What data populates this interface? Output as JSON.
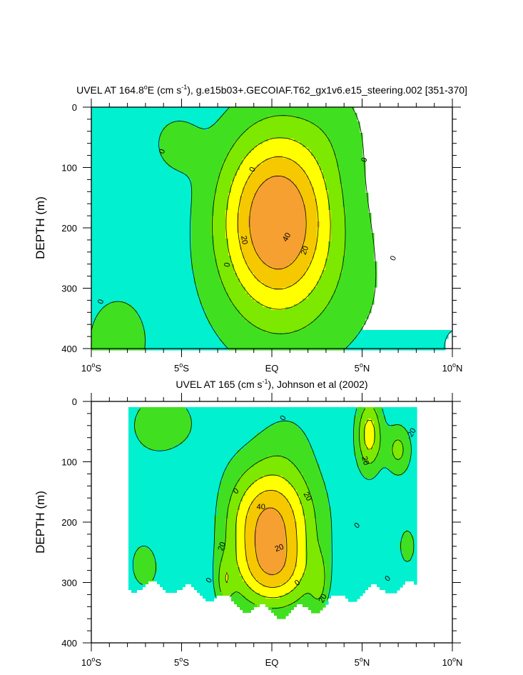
{
  "colors": {
    "lt0": "#00ffff",
    "c_0_neg": "#00f0d0",
    "c_0_10": "#40e020",
    "c_10_20": "#7de800",
    "c_20_30": "#ffff00",
    "c_30_40": "#f5c800",
    "c_40_50": "#f5a030",
    "missing": "#ffffff"
  },
  "chart_data": [
    {
      "type": "contour",
      "title": "UVEL AT 164.8°E (cm s⁻¹), g.e15b03+.GECOIAF.T62_gx1v6.e15_steering.002 [351-370]",
      "title_parts": {
        "a": "UVEL AT 164.8",
        "deg": "o",
        "b": "E (cm s",
        "sup": "-1",
        "c": "), g.e15b03+.GECOIAF.T62_gx1v6.e15_steering.002 [351-370]"
      },
      "xlabel": "",
      "ylabel": "DEPTH (m)",
      "x_range": [
        -10,
        10
      ],
      "y_range": [
        0,
        400
      ],
      "y_inverted": true,
      "x_ticks": [
        {
          "value": -10,
          "label": "10",
          "deg": "o",
          "suffix": "S"
        },
        {
          "value": -5,
          "label": "5",
          "deg": "o",
          "suffix": "S"
        },
        {
          "value": 0,
          "label": "EQ",
          "deg": "",
          "suffix": ""
        },
        {
          "value": 5,
          "label": "5",
          "deg": "o",
          "suffix": "N"
        },
        {
          "value": 10,
          "label": "10",
          "deg": "o",
          "suffix": "N"
        }
      ],
      "y_ticks": [
        0,
        100,
        200,
        300,
        400
      ],
      "contour_interval": 10,
      "max_level": 40,
      "contour_labels": [
        {
          "text": "0",
          "lat": -6.1,
          "depth": 73,
          "rot": -70
        },
        {
          "text": "0",
          "lat": -9.5,
          "depth": 322,
          "rot": -70
        },
        {
          "text": "0",
          "lat": -1.1,
          "depth": 103,
          "rot": -60
        },
        {
          "text": "0",
          "lat": -2.5,
          "depth": 261,
          "rot": -80
        },
        {
          "text": "0",
          "lat": 5.1,
          "depth": 87,
          "rot": -70
        },
        {
          "text": "0",
          "lat": 6.7,
          "depth": 250,
          "rot": -65
        },
        {
          "text": "20",
          "lat": -1.5,
          "depth": 220,
          "rot": 80
        },
        {
          "text": "40",
          "lat": 0.8,
          "depth": 215,
          "rot": -60
        },
        {
          "text": "20",
          "lat": 1.8,
          "depth": 237,
          "rot": -70
        }
      ]
    },
    {
      "type": "contour",
      "title": "UVEL AT 165 (cm s⁻¹), Johnson et al (2002)",
      "title_parts": {
        "a": "UVEL AT 165 (cm s",
        "sup": "-1",
        "c": "), Johnson et al (2002)"
      },
      "xlabel": "",
      "ylabel": "DEPTH (m)",
      "x_range": [
        -10,
        10
      ],
      "y_range": [
        0,
        400
      ],
      "y_inverted": true,
      "data_extent": {
        "lat": [
          -8,
          8
        ],
        "depth": [
          10,
          360
        ]
      },
      "x_ticks": [
        {
          "value": -10,
          "label": "10",
          "deg": "o",
          "suffix": "S"
        },
        {
          "value": -5,
          "label": "5",
          "deg": "o",
          "suffix": "S"
        },
        {
          "value": 0,
          "label": "EQ",
          "deg": "",
          "suffix": ""
        },
        {
          "value": 5,
          "label": "5",
          "deg": "o",
          "suffix": "N"
        },
        {
          "value": 10,
          "label": "10",
          "deg": "o",
          "suffix": "N"
        }
      ],
      "y_ticks": [
        0,
        100,
        200,
        300,
        400
      ],
      "contour_interval": 10,
      "max_level": 40,
      "contour_labels": [
        {
          "text": "0",
          "lat": 0.6,
          "depth": 27,
          "rot": -60
        },
        {
          "text": "-20",
          "lat": 7.7,
          "depth": 53,
          "rot": -60
        },
        {
          "text": "20",
          "lat": 5.2,
          "depth": 98,
          "rot": 75
        },
        {
          "text": "0",
          "lat": -2.0,
          "depth": 148,
          "rot": -40
        },
        {
          "text": "40",
          "lat": -0.6,
          "depth": 174,
          "rot": 0
        },
        {
          "text": "20",
          "lat": 2.0,
          "depth": 157,
          "rot": 60
        },
        {
          "text": "0",
          "lat": 4.7,
          "depth": 205,
          "rot": -45
        },
        {
          "text": "20",
          "lat": -2.8,
          "depth": 240,
          "rot": -70
        },
        {
          "text": "20",
          "lat": 0.4,
          "depth": 242,
          "rot": -20
        },
        {
          "text": "0",
          "lat": -3.5,
          "depth": 296,
          "rot": -60
        },
        {
          "text": "0",
          "lat": 1.4,
          "depth": 300,
          "rot": -40
        },
        {
          "text": "0",
          "lat": 6.4,
          "depth": 293,
          "rot": -45
        },
        {
          "text": "20",
          "lat": 2.8,
          "depth": 326,
          "rot": -60
        }
      ]
    }
  ]
}
